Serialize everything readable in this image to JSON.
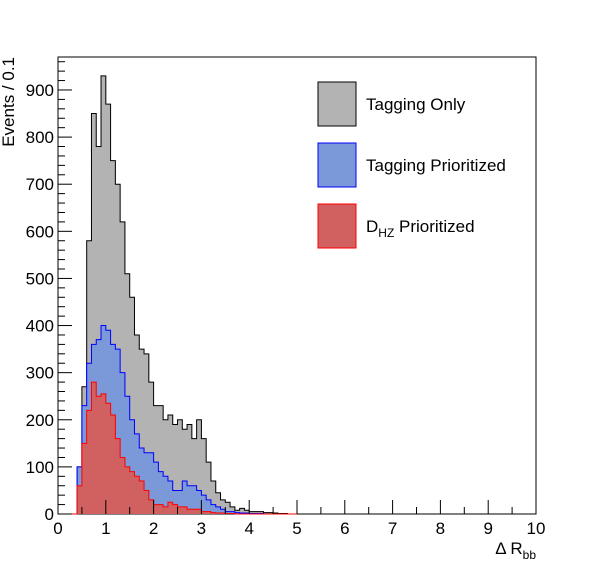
{
  "chart_data": {
    "type": "bar",
    "histogram": true,
    "bin_width": 0.1,
    "bin_start": 0.0,
    "title": "",
    "xlabel": {
      "main": "Δ R",
      "sub": "bb"
    },
    "ylabel": "Events / 0.1",
    "xlim": [
      0,
      10
    ],
    "ylim": [
      0,
      970
    ],
    "xticks": [
      0,
      1,
      2,
      3,
      4,
      5,
      6,
      7,
      8,
      9,
      10
    ],
    "yticks": [
      0,
      100,
      200,
      300,
      400,
      500,
      600,
      700,
      800,
      900
    ],
    "grid": false,
    "legend_position": "top-right",
    "series": [
      {
        "name": "Tagging Only",
        "fill": "#b3b3b3",
        "stroke": "#000000",
        "values": [
          0,
          0,
          0,
          0,
          100,
          270,
          580,
          850,
          780,
          930,
          870,
          750,
          700,
          620,
          510,
          460,
          380,
          350,
          340,
          280,
          230,
          230,
          200,
          210,
          190,
          200,
          180,
          190,
          160,
          200,
          160,
          110,
          70,
          45,
          30,
          25,
          15,
          8,
          12,
          8,
          5,
          5,
          5,
          3,
          3,
          2,
          1,
          1,
          0,
          0
        ]
      },
      {
        "name": "Tagging Prioritized",
        "fill": "#7b98d8",
        "stroke": "#0000ff",
        "values": [
          0,
          0,
          0,
          0,
          100,
          230,
          320,
          360,
          370,
          400,
          390,
          360,
          350,
          300,
          250,
          200,
          170,
          140,
          130,
          130,
          110,
          90,
          80,
          70,
          50,
          50,
          70,
          60,
          60,
          50,
          40,
          30,
          20,
          15,
          10,
          5,
          5,
          3,
          2,
          2,
          1,
          1,
          1,
          0,
          0,
          0,
          0,
          0,
          0,
          0
        ]
      },
      {
        "name": "D_HZ Prioritized",
        "label_main": "D",
        "label_sub": "HZ",
        "label_rest": " Prioritized",
        "fill": "#d16060",
        "stroke": "#ff0000",
        "values": [
          0,
          0,
          0,
          0,
          60,
          150,
          220,
          280,
          250,
          255,
          235,
          210,
          160,
          120,
          100,
          90,
          80,
          70,
          50,
          30,
          20,
          20,
          15,
          25,
          20,
          15,
          15,
          10,
          10,
          10,
          5,
          5,
          3,
          2,
          2,
          1,
          1,
          0,
          0,
          0,
          0,
          0,
          0,
          0,
          0,
          0,
          0,
          0,
          0,
          0
        ]
      }
    ]
  }
}
